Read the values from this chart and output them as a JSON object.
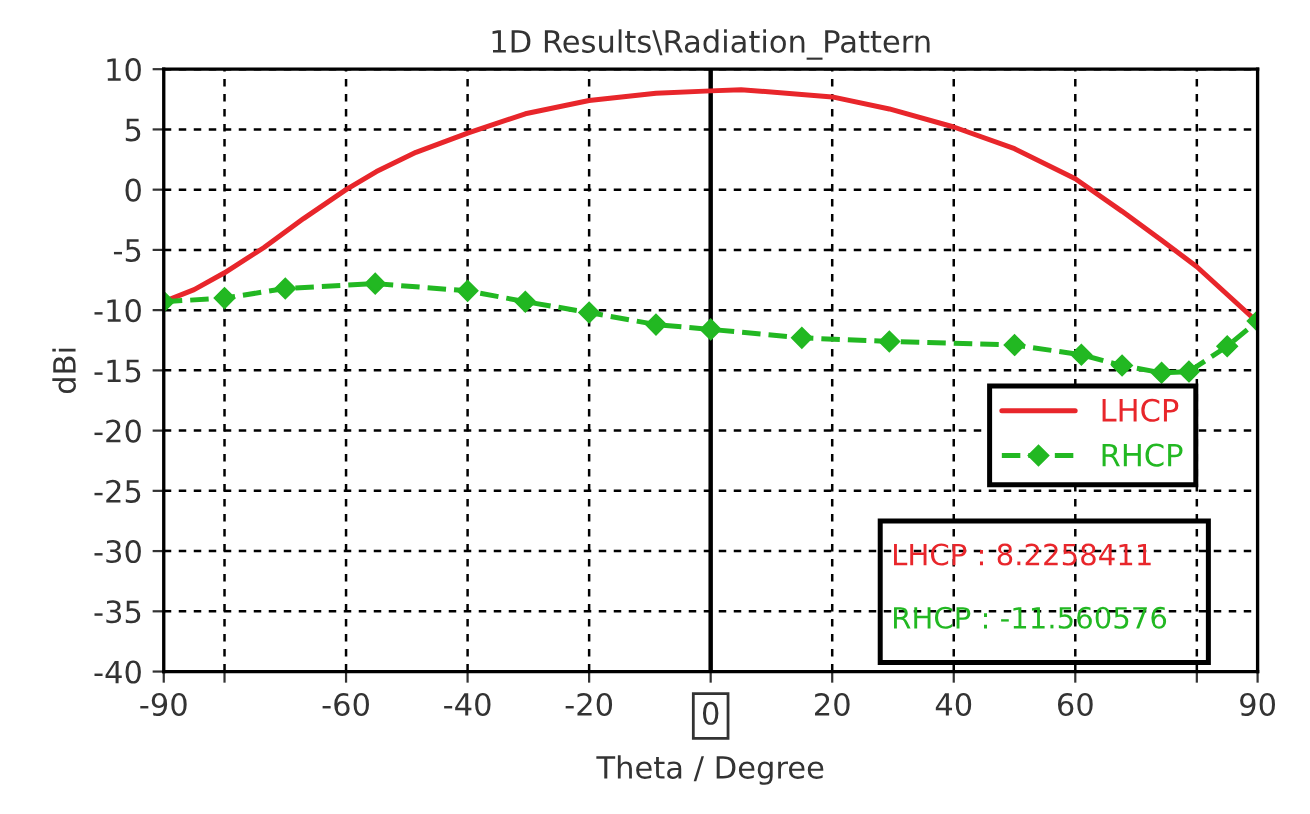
{
  "chart_data": {
    "type": "line",
    "title": "1D Results\\Radiation_Pattern",
    "xlabel": "Theta / Degree",
    "ylabel": "dBi",
    "xlim": [
      -90,
      90
    ],
    "ylim": [
      -40,
      10
    ],
    "xticks": [
      -90,
      {
        "value": -80,
        "label": null
      },
      -60,
      -40,
      -20,
      {
        "value": 0,
        "label": null
      },
      20,
      40,
      60,
      {
        "value": 80,
        "label": null
      },
      90
    ],
    "yticks": [
      -40,
      -35,
      -30,
      -25,
      -20,
      -15,
      -10,
      -5,
      0,
      5,
      10
    ],
    "grid": true,
    "legend": "bottom right",
    "ref_lines": [
      {
        "axis": "x",
        "value": 0,
        "label": "0",
        "color": "#000000",
        "line_style": "solid"
      }
    ],
    "annotations": [
      "LHCP : 8.2258411",
      "RHCP : -11.560576"
    ],
    "series": [
      {
        "name": "LHCP",
        "color": "#e8262b",
        "line_style": "solid",
        "marker": "none",
        "x": [
          -90,
          -85,
          -80,
          -73.5,
          -67,
          -60,
          -55,
          -48.5,
          -40,
          -30.5,
          -20,
          -9,
          0,
          5,
          20,
          29.4,
          40,
          50,
          60,
          67.7,
          74.2,
          80,
          90
        ],
        "values": [
          -9.3,
          -8.3,
          -6.9,
          -4.8,
          -2.4,
          0,
          1.5,
          3.1,
          4.7,
          6.3,
          7.4,
          8.0,
          8.2,
          8.3,
          7.7,
          6.7,
          5.2,
          3.4,
          0.9,
          -1.8,
          -4.2,
          -6.4,
          -11
        ]
      },
      {
        "name": "RHCP",
        "color": "#22b822",
        "line_style": "dashed",
        "marker": "diamond",
        "x": [
          -90,
          -80,
          -70,
          -55.2,
          -40,
          -30.5,
          -20,
          -9,
          0,
          15,
          29.4,
          50,
          61,
          67.7,
          74.2,
          78.7,
          85,
          90
        ],
        "values": [
          -9.3,
          -9.0,
          -8.2,
          -7.8,
          -8.4,
          -9.3,
          -10.2,
          -11.2,
          -11.6,
          -12.3,
          -12.6,
          -12.9,
          -13.7,
          -14.6,
          -15.2,
          -15.1,
          -13.0,
          -10.9
        ]
      }
    ]
  }
}
